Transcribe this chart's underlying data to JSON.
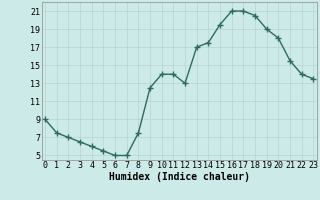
{
  "x": [
    0,
    1,
    2,
    3,
    4,
    5,
    6,
    7,
    8,
    9,
    10,
    11,
    12,
    13,
    14,
    15,
    16,
    17,
    18,
    19,
    20,
    21,
    22,
    23
  ],
  "y": [
    9,
    7.5,
    7.0,
    6.5,
    6.0,
    5.5,
    5.0,
    5.0,
    7.5,
    12.5,
    14.0,
    14.0,
    13.0,
    17.0,
    17.5,
    19.5,
    21.0,
    21.0,
    20.5,
    19.0,
    18.0,
    15.5,
    14.0,
    13.5
  ],
  "line_color": "#2e6b5e",
  "marker": "+",
  "marker_size": 4,
  "line_width": 1.0,
  "bg_color": "#cceae8",
  "grid_color": "#b8d4d2",
  "xlabel": "Humidex (Indice chaleur)",
  "xlabel_fontsize": 7,
  "tick_fontsize": 6,
  "yticks": [
    5,
    7,
    9,
    11,
    13,
    15,
    17,
    19,
    21
  ],
  "xticks": [
    0,
    1,
    2,
    3,
    4,
    5,
    6,
    7,
    8,
    9,
    10,
    11,
    12,
    13,
    14,
    15,
    16,
    17,
    18,
    19,
    20,
    21,
    22,
    23
  ],
  "xlim": [
    -0.3,
    23.3
  ],
  "ylim": [
    4.5,
    22.0
  ]
}
